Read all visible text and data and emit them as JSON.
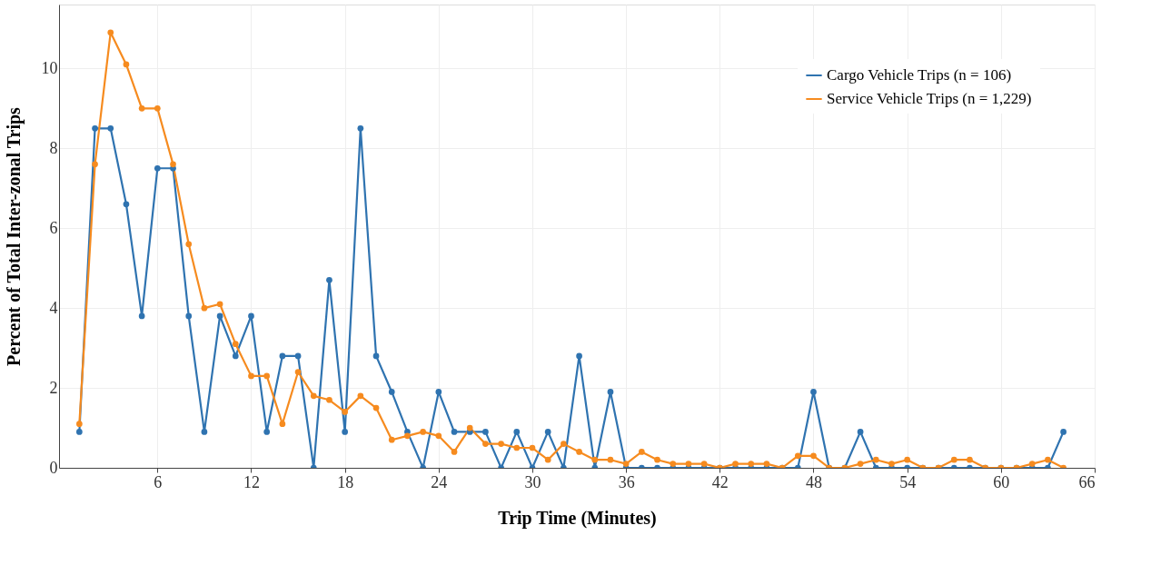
{
  "chart_data": {
    "type": "line",
    "xlabel": "Trip Time (Minutes)",
    "ylabel": "Percent of Total Inter-zonal Trips",
    "x": [
      1,
      2,
      3,
      4,
      5,
      6,
      7,
      8,
      9,
      10,
      11,
      12,
      13,
      14,
      15,
      16,
      17,
      18,
      19,
      20,
      21,
      22,
      23,
      24,
      25,
      26,
      27,
      28,
      29,
      30,
      31,
      32,
      33,
      34,
      35,
      36,
      37,
      38,
      39,
      40,
      41,
      42,
      43,
      44,
      45,
      46,
      47,
      48,
      49,
      50,
      51,
      52,
      53,
      54,
      55,
      56,
      57,
      58,
      59,
      60,
      61,
      62,
      63,
      64
    ],
    "series": [
      {
        "name": "Cargo Vehicle Trips (n = 106)",
        "color": "#2f73b0",
        "values": [
          0.9,
          8.5,
          8.5,
          6.6,
          3.8,
          7.5,
          7.5,
          3.8,
          0.9,
          3.8,
          2.8,
          3.8,
          0.9,
          2.8,
          2.8,
          0,
          4.7,
          0.9,
          8.5,
          2.8,
          1.9,
          0.9,
          0,
          1.9,
          0.9,
          0.9,
          0.9,
          0,
          0.9,
          0,
          0.9,
          0,
          2.8,
          0,
          1.9,
          0,
          0,
          0,
          0,
          0,
          0,
          0,
          0,
          0,
          0,
          0,
          0,
          1.9,
          0,
          0,
          0.9,
          0,
          0,
          0,
          0,
          0,
          0,
          0,
          0,
          0,
          0,
          0,
          0,
          0.9
        ]
      },
      {
        "name": "Service Vehicle Trips (n = 1,229)",
        "color": "#f68b1f",
        "values": [
          1.1,
          7.6,
          10.9,
          10.1,
          9.0,
          9.0,
          7.6,
          5.6,
          4.0,
          4.1,
          3.1,
          2.3,
          2.3,
          1.1,
          2.4,
          1.8,
          1.7,
          1.4,
          1.8,
          1.5,
          0.7,
          0.8,
          0.9,
          0.8,
          0.4,
          1.0,
          0.6,
          0.6,
          0.5,
          0.5,
          0.2,
          0.6,
          0.4,
          0.2,
          0.2,
          0.1,
          0.4,
          0.2,
          0.1,
          0.1,
          0.1,
          0,
          0.1,
          0.1,
          0.1,
          0,
          0.3,
          0.3,
          0,
          0,
          0.1,
          0.2,
          0.1,
          0.2,
          0,
          0,
          0.2,
          0.2,
          0,
          0,
          0,
          0.1,
          0.2,
          0
        ]
      }
    ],
    "xlim": [
      -0.3,
      66
    ],
    "xticks": [
      6,
      12,
      18,
      24,
      30,
      36,
      42,
      48,
      54,
      60,
      66
    ],
    "ylim": [
      0,
      11.6
    ],
    "yticks": [
      0,
      2,
      4,
      6,
      8,
      10
    ],
    "grid": true,
    "legend": "top right",
    "marker": "circle",
    "line_style": "solid"
  }
}
